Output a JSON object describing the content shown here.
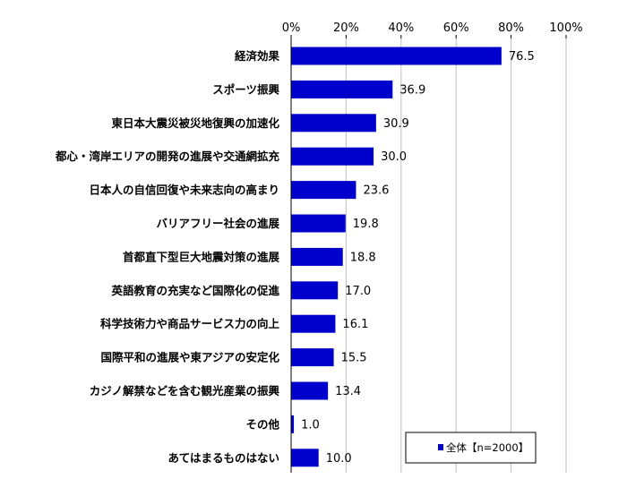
{
  "chart_data": {
    "type": "bar",
    "orientation": "horizontal",
    "categories": [
      "経済効果",
      "スポーツ振興",
      "東日本大震災被災地復興の加速化",
      "都心・湾岸エリアの開発の進展や交通網拡充",
      "日本人の自信回復や未来志向の高まり",
      "バリアフリー社会の進展",
      "首都直下型巨大地震対策の進展",
      "英語教育の充実など国際化の促進",
      "科学技術力や商品サービス力の向上",
      "国際平和の進展や東アジアの安定化",
      "カジノ解禁などを含む観光産業の振興",
      "その他",
      "あてはまるものはない"
    ],
    "series": [
      {
        "name": "全体【n=2000】",
        "values": [
          76.5,
          36.9,
          30.9,
          30.0,
          23.6,
          19.8,
          18.8,
          17.0,
          16.1,
          15.5,
          13.4,
          1.0,
          10.0
        ],
        "labels": [
          "76.5",
          "36.9",
          "30.9",
          "30.0",
          "23.6",
          "19.8",
          "18.8",
          "17.0",
          "16.1",
          "15.5",
          "13.4",
          "1.0",
          "10.0"
        ]
      }
    ],
    "xlim": [
      0,
      100
    ],
    "x_ticks": [
      "0%",
      "20%",
      "40%",
      "60%",
      "80%",
      "100%"
    ],
    "x_tick_values": [
      0,
      20,
      40,
      60,
      80,
      100
    ],
    "axis_position": "top",
    "grid": true,
    "legend_position": "bottom-right",
    "bar_color": "#0000CC",
    "grid_color": "#c0c0c0"
  }
}
